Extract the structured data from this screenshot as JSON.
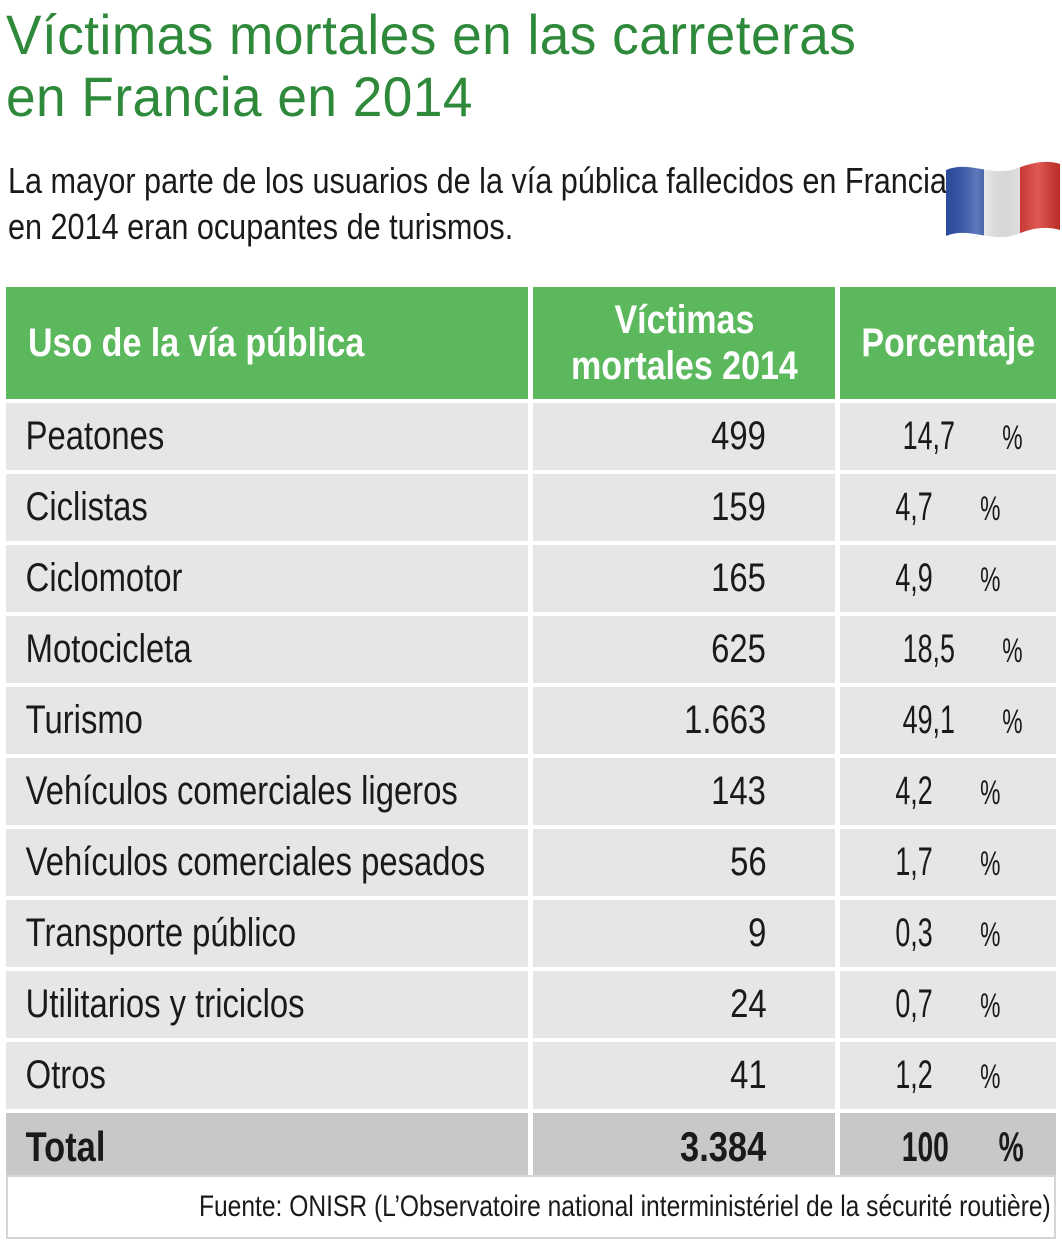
{
  "chart_data": {
    "type": "table",
    "title_lines": [
      "Víctimas mortales en las carreteras",
      "en Francia en 2014"
    ],
    "subtitle_lines": [
      "La mayor parte de los usuarios de la vía pública fallecidos en Francia",
      "en 2014 eran ocupantes de turismos."
    ],
    "columns": [
      "Uso de la vía pública",
      "Víctimas mortales 2014",
      "Porcentaje"
    ],
    "column2_lines": [
      "Víctimas",
      "mortales 2014"
    ],
    "rows": [
      {
        "label": "Peatones",
        "count": "499",
        "percent": "14,7",
        "unit": "%"
      },
      {
        "label": "Ciclistas",
        "count": "159",
        "percent": "4,7",
        "unit": "%"
      },
      {
        "label": "Ciclomotor",
        "count": "165",
        "percent": "4,9",
        "unit": "%"
      },
      {
        "label": "Motocicleta",
        "count": "625",
        "percent": "18,5",
        "unit": "%"
      },
      {
        "label": "Turismo",
        "count": "1.663",
        "percent": "49,1",
        "unit": "%"
      },
      {
        "label": "Vehículos comerciales ligeros",
        "count": "143",
        "percent": "4,2",
        "unit": "%"
      },
      {
        "label": "Vehículos comerciales pesados",
        "count": "56",
        "percent": "1,7",
        "unit": "%"
      },
      {
        "label": "Transporte público",
        "count": "9",
        "percent": "0,3",
        "unit": "%"
      },
      {
        "label": "Utilitarios y triciclos",
        "count": "24",
        "percent": "0,7",
        "unit": "%"
      },
      {
        "label": "Otros",
        "count": "41",
        "percent": "1,2",
        "unit": "%"
      }
    ],
    "total": {
      "label": "Total",
      "count": "3.384",
      "percent": "100",
      "unit": "%"
    },
    "source": "Fuente: ONISR (L’Observatoire national interministériel de la sécurité routière)"
  },
  "colors": {
    "title": "#2e8a3a",
    "header_bg": "#5cb85c",
    "row_bg": "#e6e6e6",
    "total_bg": "#c8c8c8",
    "flag_blue": "#2a4fa8",
    "flag_white": "#f4f4f4",
    "flag_red": "#d8312b"
  },
  "icons": {
    "flag": "france-flag-icon"
  }
}
